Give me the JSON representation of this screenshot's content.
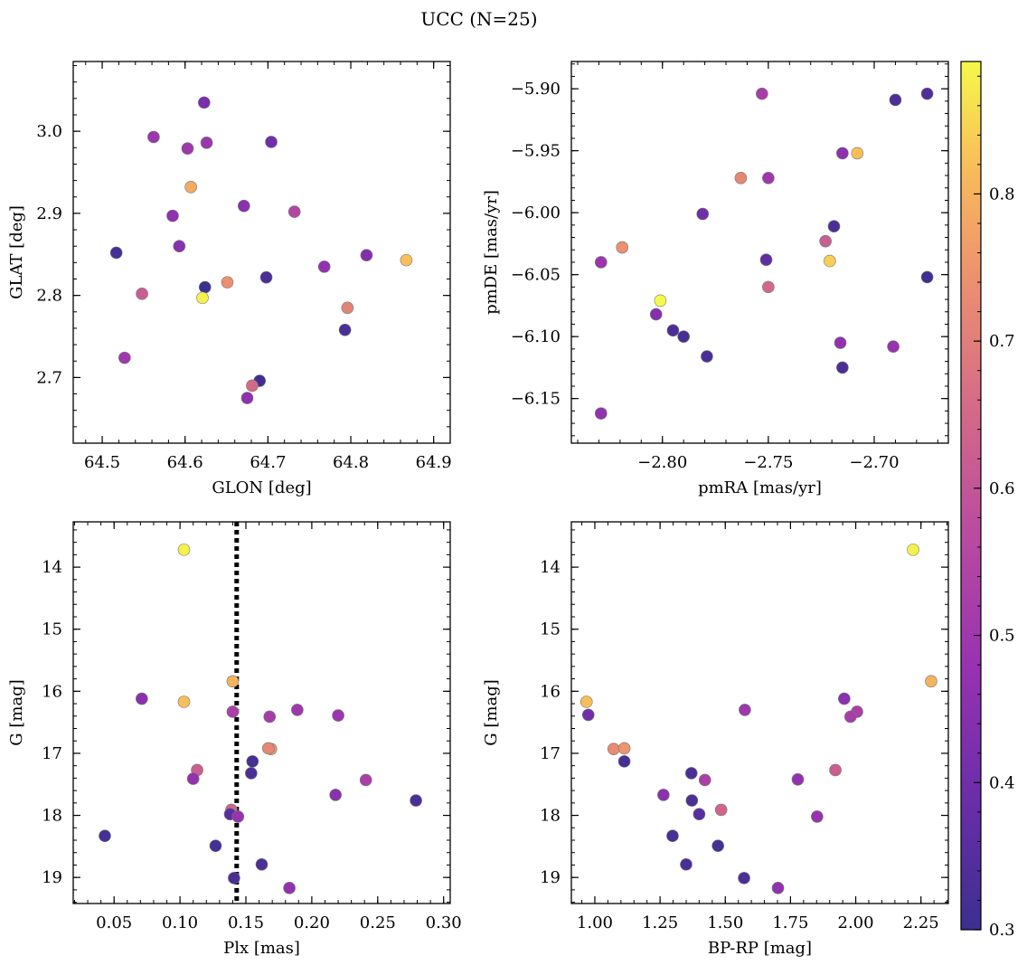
{
  "title": "UCC (N=25)",
  "colorbar": {
    "colormap": "plasma",
    "range": [
      0.3,
      0.89
    ],
    "ticks": [
      0.3,
      0.4,
      0.5,
      0.6,
      0.7,
      0.8
    ],
    "tick_labels": [
      "0.3",
      "0.4",
      "0.5",
      "0.6",
      "0.7",
      "0.8"
    ]
  },
  "chart_data": [
    {
      "type": "scatter",
      "xlabel": "GLON [deg]",
      "ylabel": "GLAT [deg]",
      "xlim": [
        64.465,
        64.92
      ],
      "ylim": [
        2.62,
        3.085
      ],
      "y_inverted": false,
      "xticks": [
        64.5,
        64.6,
        64.7,
        64.8,
        64.9
      ],
      "xtick_labels": [
        "64.5",
        "64.6",
        "64.7",
        "64.8",
        "64.9"
      ],
      "yticks": [
        2.7,
        2.8,
        2.9,
        3.0
      ],
      "ytick_labels": [
        "2.7",
        "2.8",
        "2.9",
        "3.0"
      ],
      "points": [
        {
          "x": 64.623,
          "y": 3.035,
          "c": 0.42
        },
        {
          "x": 64.562,
          "y": 2.993,
          "c": 0.49
        },
        {
          "x": 64.603,
          "y": 2.979,
          "c": 0.5
        },
        {
          "x": 64.626,
          "y": 2.986,
          "c": 0.49
        },
        {
          "x": 64.704,
          "y": 2.987,
          "c": 0.4
        },
        {
          "x": 64.607,
          "y": 2.932,
          "c": 0.79
        },
        {
          "x": 64.671,
          "y": 2.909,
          "c": 0.45
        },
        {
          "x": 64.585,
          "y": 2.897,
          "c": 0.46
        },
        {
          "x": 64.732,
          "y": 2.902,
          "c": 0.55
        },
        {
          "x": 64.517,
          "y": 2.852,
          "c": 0.32
        },
        {
          "x": 64.593,
          "y": 2.86,
          "c": 0.45
        },
        {
          "x": 64.819,
          "y": 2.849,
          "c": 0.44
        },
        {
          "x": 64.867,
          "y": 2.843,
          "c": 0.82
        },
        {
          "x": 64.768,
          "y": 2.835,
          "c": 0.47
        },
        {
          "x": 64.698,
          "y": 2.822,
          "c": 0.33
        },
        {
          "x": 64.651,
          "y": 2.816,
          "c": 0.74
        },
        {
          "x": 64.624,
          "y": 2.81,
          "c": 0.3
        },
        {
          "x": 64.548,
          "y": 2.802,
          "c": 0.62
        },
        {
          "x": 64.621,
          "y": 2.797,
          "c": 0.88
        },
        {
          "x": 64.796,
          "y": 2.785,
          "c": 0.71
        },
        {
          "x": 64.793,
          "y": 2.758,
          "c": 0.33
        },
        {
          "x": 64.527,
          "y": 2.724,
          "c": 0.5
        },
        {
          "x": 64.69,
          "y": 2.696,
          "c": 0.31
        },
        {
          "x": 64.681,
          "y": 2.69,
          "c": 0.65
        },
        {
          "x": 64.675,
          "y": 2.675,
          "c": 0.46
        }
      ]
    },
    {
      "type": "scatter",
      "xlabel": "pmRA [mas/yr]",
      "ylabel": "pmDE [mas/yr]",
      "xlim": [
        -2.843,
        -2.665
      ],
      "ylim": [
        -6.186,
        -5.878
      ],
      "y_inverted": false,
      "xticks": [
        -2.8,
        -2.75,
        -2.7
      ],
      "xtick_labels": [
        "−2.80",
        "−2.75",
        "−2.70"
      ],
      "yticks": [
        -6.15,
        -6.1,
        -6.05,
        -6.0,
        -5.95,
        -5.9
      ],
      "ytick_labels": [
        "−6.15",
        "−6.10",
        "−6.05",
        "−6.00",
        "−5.95",
        "−5.90"
      ],
      "points": [
        {
          "x": -2.753,
          "y": -5.904,
          "c": 0.52
        },
        {
          "x": -2.69,
          "y": -5.909,
          "c": 0.33
        },
        {
          "x": -2.675,
          "y": -5.904,
          "c": 0.34
        },
        {
          "x": -2.715,
          "y": -5.952,
          "c": 0.46
        },
        {
          "x": -2.708,
          "y": -5.952,
          "c": 0.82
        },
        {
          "x": -2.763,
          "y": -5.972,
          "c": 0.72
        },
        {
          "x": -2.75,
          "y": -5.972,
          "c": 0.5
        },
        {
          "x": -2.781,
          "y": -6.001,
          "c": 0.4
        },
        {
          "x": -2.719,
          "y": -6.011,
          "c": 0.33
        },
        {
          "x": -2.819,
          "y": -6.028,
          "c": 0.74
        },
        {
          "x": -2.723,
          "y": -6.023,
          "c": 0.62
        },
        {
          "x": -2.829,
          "y": -6.04,
          "c": 0.49
        },
        {
          "x": -2.751,
          "y": -6.038,
          "c": 0.37
        },
        {
          "x": -2.721,
          "y": -6.039,
          "c": 0.84
        },
        {
          "x": -2.675,
          "y": -6.052,
          "c": 0.31
        },
        {
          "x": -2.75,
          "y": -6.06,
          "c": 0.65
        },
        {
          "x": -2.801,
          "y": -6.071,
          "c": 0.89
        },
        {
          "x": -2.803,
          "y": -6.082,
          "c": 0.44
        },
        {
          "x": -2.795,
          "y": -6.095,
          "c": 0.33
        },
        {
          "x": -2.79,
          "y": -6.1,
          "c": 0.32
        },
        {
          "x": -2.716,
          "y": -6.105,
          "c": 0.47
        },
        {
          "x": -2.691,
          "y": -6.108,
          "c": 0.48
        },
        {
          "x": -2.779,
          "y": -6.116,
          "c": 0.33
        },
        {
          "x": -2.715,
          "y": -6.125,
          "c": 0.33
        },
        {
          "x": -2.829,
          "y": -6.162,
          "c": 0.47
        }
      ]
    },
    {
      "type": "scatter",
      "xlabel": "Plx [mas]",
      "ylabel": "G [mag]",
      "xlim": [
        0.019,
        0.305
      ],
      "ylim": [
        19.42,
        13.27
      ],
      "y_inverted": true,
      "xticks": [
        0.05,
        0.1,
        0.15,
        0.2,
        0.25,
        0.3
      ],
      "xtick_labels": [
        "0.05",
        "0.10",
        "0.15",
        "0.20",
        "0.25",
        "0.30"
      ],
      "yticks": [
        14,
        15,
        16,
        17,
        18,
        19
      ],
      "ytick_labels": [
        "14",
        "15",
        "16",
        "17",
        "18",
        "19"
      ],
      "vline": 0.143,
      "points": [
        {
          "x": 0.103,
          "y": 13.72,
          "c": 0.88
        },
        {
          "x": 0.14,
          "y": 15.84,
          "c": 0.8
        },
        {
          "x": 0.071,
          "y": 16.12,
          "c": 0.45
        },
        {
          "x": 0.103,
          "y": 16.17,
          "c": 0.82
        },
        {
          "x": 0.14,
          "y": 16.33,
          "c": 0.53
        },
        {
          "x": 0.189,
          "y": 16.3,
          "c": 0.5
        },
        {
          "x": 0.168,
          "y": 16.41,
          "c": 0.52
        },
        {
          "x": 0.22,
          "y": 16.39,
          "c": 0.49
        },
        {
          "x": 0.169,
          "y": 16.93,
          "c": 0.75
        },
        {
          "x": 0.167,
          "y": 16.92,
          "c": 0.72
        },
        {
          "x": 0.155,
          "y": 17.13,
          "c": 0.32
        },
        {
          "x": 0.113,
          "y": 17.27,
          "c": 0.62
        },
        {
          "x": 0.154,
          "y": 17.32,
          "c": 0.33
        },
        {
          "x": 0.11,
          "y": 17.41,
          "c": 0.47
        },
        {
          "x": 0.241,
          "y": 17.43,
          "c": 0.53
        },
        {
          "x": 0.218,
          "y": 17.67,
          "c": 0.45
        },
        {
          "x": 0.279,
          "y": 17.76,
          "c": 0.33
        },
        {
          "x": 0.139,
          "y": 17.91,
          "c": 0.64
        },
        {
          "x": 0.138,
          "y": 17.98,
          "c": 0.36
        },
        {
          "x": 0.144,
          "y": 18.02,
          "c": 0.48
        },
        {
          "x": 0.043,
          "y": 18.33,
          "c": 0.32
        },
        {
          "x": 0.127,
          "y": 18.49,
          "c": 0.32
        },
        {
          "x": 0.162,
          "y": 18.79,
          "c": 0.33
        },
        {
          "x": 0.141,
          "y": 19.01,
          "c": 0.33
        },
        {
          "x": 0.183,
          "y": 19.17,
          "c": 0.47
        }
      ]
    },
    {
      "type": "scatter",
      "xlabel": "BP-RP [mag]",
      "ylabel": "G [mag]",
      "xlim": [
        0.91,
        2.355
      ],
      "ylim": [
        19.42,
        13.27
      ],
      "y_inverted": true,
      "xticks": [
        1.0,
        1.25,
        1.5,
        1.75,
        2.0,
        2.25
      ],
      "xtick_labels": [
        "1.00",
        "1.25",
        "1.50",
        "1.75",
        "2.00",
        "2.25"
      ],
      "yticks": [
        14,
        15,
        16,
        17,
        18,
        19
      ],
      "ytick_labels": [
        "14",
        "15",
        "16",
        "17",
        "18",
        "19"
      ],
      "points": [
        {
          "x": 2.22,
          "y": 13.72,
          "c": 0.88
        },
        {
          "x": 2.289,
          "y": 15.84,
          "c": 0.8
        },
        {
          "x": 0.968,
          "y": 16.17,
          "c": 0.82
        },
        {
          "x": 0.975,
          "y": 16.38,
          "c": 0.4
        },
        {
          "x": 1.575,
          "y": 16.3,
          "c": 0.5
        },
        {
          "x": 1.956,
          "y": 16.12,
          "c": 0.45
        },
        {
          "x": 2.005,
          "y": 16.33,
          "c": 0.53
        },
        {
          "x": 1.98,
          "y": 16.41,
          "c": 0.52
        },
        {
          "x": 1.072,
          "y": 16.93,
          "c": 0.73
        },
        {
          "x": 1.113,
          "y": 16.92,
          "c": 0.75
        },
        {
          "x": 1.113,
          "y": 17.13,
          "c": 0.32
        },
        {
          "x": 1.37,
          "y": 17.32,
          "c": 0.33
        },
        {
          "x": 1.422,
          "y": 17.43,
          "c": 0.53
        },
        {
          "x": 1.778,
          "y": 17.42,
          "c": 0.47
        },
        {
          "x": 1.922,
          "y": 17.27,
          "c": 0.62
        },
        {
          "x": 1.263,
          "y": 17.67,
          "c": 0.45
        },
        {
          "x": 1.372,
          "y": 17.76,
          "c": 0.33
        },
        {
          "x": 1.4,
          "y": 17.98,
          "c": 0.36
        },
        {
          "x": 1.484,
          "y": 17.91,
          "c": 0.64
        },
        {
          "x": 1.852,
          "y": 18.02,
          "c": 0.48
        },
        {
          "x": 1.298,
          "y": 18.33,
          "c": 0.32
        },
        {
          "x": 1.472,
          "y": 18.49,
          "c": 0.32
        },
        {
          "x": 1.35,
          "y": 18.79,
          "c": 0.33
        },
        {
          "x": 1.572,
          "y": 19.01,
          "c": 0.33
        },
        {
          "x": 1.702,
          "y": 19.17,
          "c": 0.47
        }
      ]
    }
  ]
}
